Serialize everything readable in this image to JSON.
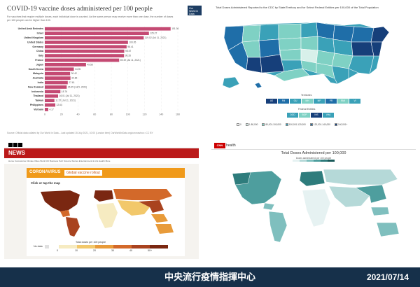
{
  "owid": {
    "title": "COVID-19 vaccine doses administered per 100 people",
    "subtitle": "For vaccines that require multiple doses, each individual dose is counted. As the same person may receive more than one dose, the number of doses per 100 people can be higher than 100.",
    "logo": "Our World in Data",
    "source": "Source: Official data collated by Our World in Data – Last updated 15 July 2021, 10:00 (London time)        OurWorldInData.org/coronavirus • CC BY",
    "bar_color_hex": "#c44a73",
    "chart_data": {
      "type": "bar",
      "orientation": "horizontal",
      "categories": [
        "United Arab Emirates",
        "Israel",
        "United Kingdom",
        "United States",
        "Germany",
        "China",
        "Italy",
        "France",
        "Japan",
        "South Korea",
        "Malaysia",
        "Australia",
        "India",
        "New Zealand",
        "Indonesia",
        "Thailand",
        "Taiwan",
        "Philippines",
        "Vietnam"
      ],
      "values": [
        151.36,
        125.27,
        119.02,
        100.05,
        98.41,
        95.57,
        95.35,
        89.49,
        49.58,
        34.95,
        30.42,
        30.86,
        27.61,
        26.35,
        18.76,
        16.01,
        11.57,
        12.64,
        4.17
      ],
      "value_labels": [
        "151.36",
        "125.27",
        "119.02 (Jul 11, 2021)",
        "100.05",
        "98.41",
        "95.57",
        "95.35",
        "89.49 (Jul 11, 2021)",
        "49.58",
        "34.95",
        "30.42",
        "30.86",
        "27.61",
        "26.35 (Jul 5, 2021)",
        "18.76",
        "16.01 (Jul 11, 2021)",
        "11.57 (Jul 11, 2021)",
        "12.64",
        "4.17"
      ],
      "xticks": [
        "0",
        "20",
        "40",
        "60",
        "80",
        "100",
        "120",
        "140",
        "160"
      ],
      "xlim": [
        0,
        160
      ]
    }
  },
  "cdc": {
    "title": "Total Doses Administered Reported to the CDC by State/Territory and for Select Federal Entities per 100,000 of the Total Population",
    "territories_label": "Territories",
    "federal_label": "Federal Entities",
    "territories": [
      "AS",
      "FM",
      "GU",
      "MH",
      "MP",
      "PR",
      "RMI",
      "VI"
    ],
    "federal": [
      "DOD",
      "BOP",
      "IHS",
      "VHA"
    ],
    "legend": [
      "0",
      "1-80,000",
      "80,001-100,000",
      "100,001-120,000",
      "120,001-140,000",
      "140,001+"
    ],
    "legend_colors": [
      "#ffffff",
      "#d8f0ea",
      "#7fd1c4",
      "#3aa1b8",
      "#1f6ea8",
      "#163f7a"
    ]
  },
  "bbc": {
    "news": "NEWS",
    "nav": "Home   Coronavirus   Climate   Video   World   UK   Business   Tech   Science   Stories   Entertainment & Arts   Health   More",
    "coronavirus": "CORONAVIRUS",
    "global": "Global vaccine rollout",
    "click": "Click or tap the map",
    "legend_title": "Total doses per 100 people",
    "no_data": "No data",
    "legend_ticks": [
      "0",
      "10",
      "20",
      "30",
      "40",
      "50+"
    ],
    "legend_colors": [
      "#f6ebc1",
      "#f2c86b",
      "#e89b3a",
      "#d3692a",
      "#a9431f",
      "#7a2711"
    ]
  },
  "cnn": {
    "logo": "CNN",
    "health": "health",
    "title": "Total Doses Administered per 100,000",
    "legend_title": "Doses administered per 100 people",
    "legend_colors": [
      "#e6f2f2",
      "#b5d9d8",
      "#7fbfbe",
      "#4e9e9e",
      "#2e7c7c",
      "#1a5a5a"
    ]
  },
  "footer": {
    "center": "中央流行疫情指揮中心",
    "date": "2021/07/14"
  }
}
